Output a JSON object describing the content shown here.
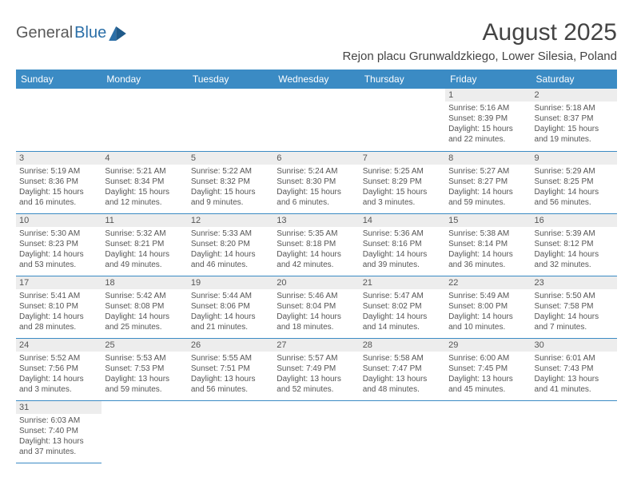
{
  "logo": {
    "general": "General",
    "blue": "Blue"
  },
  "title": "August 2025",
  "location": "Rejon placu Grunwaldzkiego, Lower Silesia, Poland",
  "colors": {
    "header_bg": "#3b8bc4",
    "header_text": "#ffffff",
    "daynum_bg": "#ededed",
    "text": "#555555",
    "rule": "#3b8bc4",
    "logo_gray": "#5a5a5a",
    "logo_blue": "#2b6fa8"
  },
  "typography": {
    "title_fontsize": 30,
    "location_fontsize": 15,
    "header_fontsize": 12,
    "cell_fontsize": 10,
    "daynum_fontsize": 11
  },
  "day_headers": [
    "Sunday",
    "Monday",
    "Tuesday",
    "Wednesday",
    "Thursday",
    "Friday",
    "Saturday"
  ],
  "weeks": [
    [
      null,
      null,
      null,
      null,
      null,
      {
        "n": "1",
        "sr": "Sunrise: 5:16 AM",
        "ss": "Sunset: 8:39 PM",
        "d1": "Daylight: 15 hours",
        "d2": "and 22 minutes."
      },
      {
        "n": "2",
        "sr": "Sunrise: 5:18 AM",
        "ss": "Sunset: 8:37 PM",
        "d1": "Daylight: 15 hours",
        "d2": "and 19 minutes."
      }
    ],
    [
      {
        "n": "3",
        "sr": "Sunrise: 5:19 AM",
        "ss": "Sunset: 8:36 PM",
        "d1": "Daylight: 15 hours",
        "d2": "and 16 minutes."
      },
      {
        "n": "4",
        "sr": "Sunrise: 5:21 AM",
        "ss": "Sunset: 8:34 PM",
        "d1": "Daylight: 15 hours",
        "d2": "and 12 minutes."
      },
      {
        "n": "5",
        "sr": "Sunrise: 5:22 AM",
        "ss": "Sunset: 8:32 PM",
        "d1": "Daylight: 15 hours",
        "d2": "and 9 minutes."
      },
      {
        "n": "6",
        "sr": "Sunrise: 5:24 AM",
        "ss": "Sunset: 8:30 PM",
        "d1": "Daylight: 15 hours",
        "d2": "and 6 minutes."
      },
      {
        "n": "7",
        "sr": "Sunrise: 5:25 AM",
        "ss": "Sunset: 8:29 PM",
        "d1": "Daylight: 15 hours",
        "d2": "and 3 minutes."
      },
      {
        "n": "8",
        "sr": "Sunrise: 5:27 AM",
        "ss": "Sunset: 8:27 PM",
        "d1": "Daylight: 14 hours",
        "d2": "and 59 minutes."
      },
      {
        "n": "9",
        "sr": "Sunrise: 5:29 AM",
        "ss": "Sunset: 8:25 PM",
        "d1": "Daylight: 14 hours",
        "d2": "and 56 minutes."
      }
    ],
    [
      {
        "n": "10",
        "sr": "Sunrise: 5:30 AM",
        "ss": "Sunset: 8:23 PM",
        "d1": "Daylight: 14 hours",
        "d2": "and 53 minutes."
      },
      {
        "n": "11",
        "sr": "Sunrise: 5:32 AM",
        "ss": "Sunset: 8:21 PM",
        "d1": "Daylight: 14 hours",
        "d2": "and 49 minutes."
      },
      {
        "n": "12",
        "sr": "Sunrise: 5:33 AM",
        "ss": "Sunset: 8:20 PM",
        "d1": "Daylight: 14 hours",
        "d2": "and 46 minutes."
      },
      {
        "n": "13",
        "sr": "Sunrise: 5:35 AM",
        "ss": "Sunset: 8:18 PM",
        "d1": "Daylight: 14 hours",
        "d2": "and 42 minutes."
      },
      {
        "n": "14",
        "sr": "Sunrise: 5:36 AM",
        "ss": "Sunset: 8:16 PM",
        "d1": "Daylight: 14 hours",
        "d2": "and 39 minutes."
      },
      {
        "n": "15",
        "sr": "Sunrise: 5:38 AM",
        "ss": "Sunset: 8:14 PM",
        "d1": "Daylight: 14 hours",
        "d2": "and 36 minutes."
      },
      {
        "n": "16",
        "sr": "Sunrise: 5:39 AM",
        "ss": "Sunset: 8:12 PM",
        "d1": "Daylight: 14 hours",
        "d2": "and 32 minutes."
      }
    ],
    [
      {
        "n": "17",
        "sr": "Sunrise: 5:41 AM",
        "ss": "Sunset: 8:10 PM",
        "d1": "Daylight: 14 hours",
        "d2": "and 28 minutes."
      },
      {
        "n": "18",
        "sr": "Sunrise: 5:42 AM",
        "ss": "Sunset: 8:08 PM",
        "d1": "Daylight: 14 hours",
        "d2": "and 25 minutes."
      },
      {
        "n": "19",
        "sr": "Sunrise: 5:44 AM",
        "ss": "Sunset: 8:06 PM",
        "d1": "Daylight: 14 hours",
        "d2": "and 21 minutes."
      },
      {
        "n": "20",
        "sr": "Sunrise: 5:46 AM",
        "ss": "Sunset: 8:04 PM",
        "d1": "Daylight: 14 hours",
        "d2": "and 18 minutes."
      },
      {
        "n": "21",
        "sr": "Sunrise: 5:47 AM",
        "ss": "Sunset: 8:02 PM",
        "d1": "Daylight: 14 hours",
        "d2": "and 14 minutes."
      },
      {
        "n": "22",
        "sr": "Sunrise: 5:49 AM",
        "ss": "Sunset: 8:00 PM",
        "d1": "Daylight: 14 hours",
        "d2": "and 10 minutes."
      },
      {
        "n": "23",
        "sr": "Sunrise: 5:50 AM",
        "ss": "Sunset: 7:58 PM",
        "d1": "Daylight: 14 hours",
        "d2": "and 7 minutes."
      }
    ],
    [
      {
        "n": "24",
        "sr": "Sunrise: 5:52 AM",
        "ss": "Sunset: 7:56 PM",
        "d1": "Daylight: 14 hours",
        "d2": "and 3 minutes."
      },
      {
        "n": "25",
        "sr": "Sunrise: 5:53 AM",
        "ss": "Sunset: 7:53 PM",
        "d1": "Daylight: 13 hours",
        "d2": "and 59 minutes."
      },
      {
        "n": "26",
        "sr": "Sunrise: 5:55 AM",
        "ss": "Sunset: 7:51 PM",
        "d1": "Daylight: 13 hours",
        "d2": "and 56 minutes."
      },
      {
        "n": "27",
        "sr": "Sunrise: 5:57 AM",
        "ss": "Sunset: 7:49 PM",
        "d1": "Daylight: 13 hours",
        "d2": "and 52 minutes."
      },
      {
        "n": "28",
        "sr": "Sunrise: 5:58 AM",
        "ss": "Sunset: 7:47 PM",
        "d1": "Daylight: 13 hours",
        "d2": "and 48 minutes."
      },
      {
        "n": "29",
        "sr": "Sunrise: 6:00 AM",
        "ss": "Sunset: 7:45 PM",
        "d1": "Daylight: 13 hours",
        "d2": "and 45 minutes."
      },
      {
        "n": "30",
        "sr": "Sunrise: 6:01 AM",
        "ss": "Sunset: 7:43 PM",
        "d1": "Daylight: 13 hours",
        "d2": "and 41 minutes."
      }
    ],
    [
      {
        "n": "31",
        "sr": "Sunrise: 6:03 AM",
        "ss": "Sunset: 7:40 PM",
        "d1": "Daylight: 13 hours",
        "d2": "and 37 minutes."
      },
      null,
      null,
      null,
      null,
      null,
      null
    ]
  ]
}
